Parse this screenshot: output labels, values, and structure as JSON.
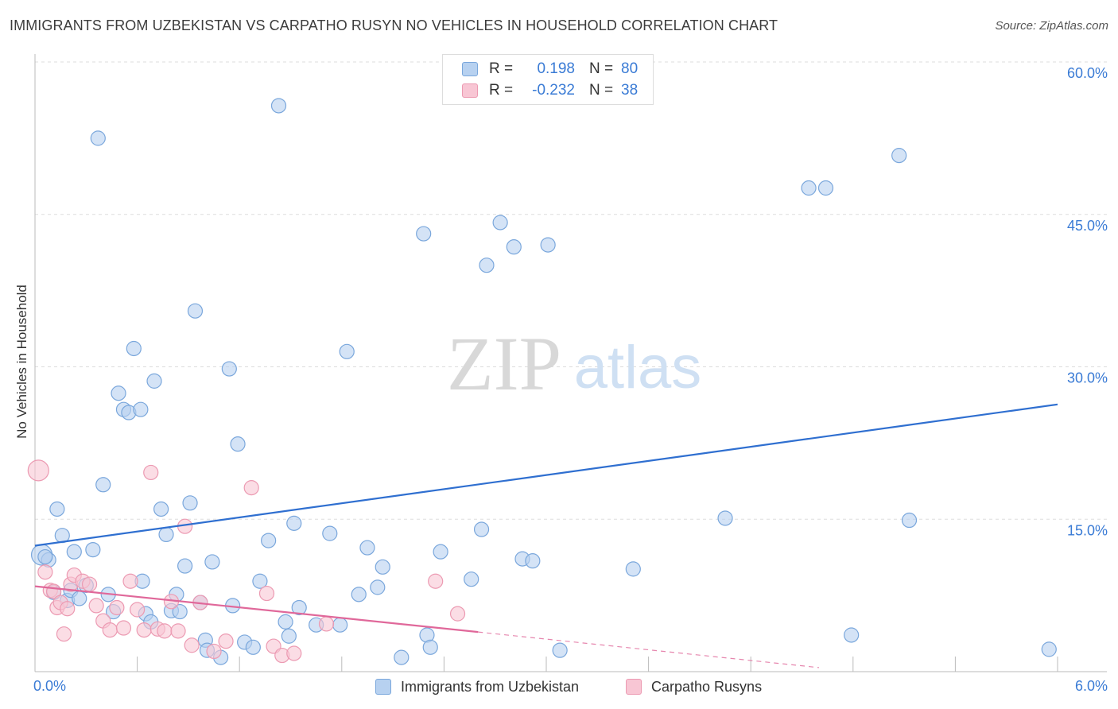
{
  "header": {
    "title": "IMMIGRANTS FROM UZBEKISTAN VS CARPATHO RUSYN NO VEHICLES IN HOUSEHOLD CORRELATION CHART",
    "source": "Source: ZipAtlas.com"
  },
  "legend": {
    "rows": [
      {
        "r_label": "R =",
        "r_value": "0.198",
        "n_label": "N =",
        "n_value": "80"
      },
      {
        "r_label": "R =",
        "r_value": "-0.232",
        "n_label": "N =",
        "n_value": "38"
      }
    ]
  },
  "watermark": {
    "zip": "ZIP",
    "atlas": "atlas"
  },
  "colors": {
    "blue_fill": "#b7d1f0",
    "blue_stroke": "#7aa7dc",
    "blue_line": "#2f6fd0",
    "pink_fill": "#f8c6d4",
    "pink_stroke": "#ec9ab2",
    "pink_line": "#e0689a",
    "tick_text": "#3a7bd5",
    "grid": "#dddddd"
  },
  "chart_data": {
    "type": "scatter",
    "title": "IMMIGRANTS FROM UZBEKISTAN VS CARPATHO RUSYN NO VEHICLES IN HOUSEHOLD CORRELATION CHART",
    "xlabel": "",
    "ylabel": "No Vehicles in Household",
    "xlim": [
      0,
      6
    ],
    "ylim": [
      0,
      60
    ],
    "x_tick_labels": [
      "0.0%",
      "6.0%"
    ],
    "y_ticks": [
      15,
      30,
      45,
      60
    ],
    "y_tick_labels": [
      "15.0%",
      "30.0%",
      "45.0%",
      "60.0%"
    ],
    "grid": true,
    "legend_position": "top-center",
    "series": [
      {
        "name": "Immigrants from Uzbekistan",
        "color": "#b7d1f0",
        "trend": {
          "x": [
            0.0,
            6.0
          ],
          "y": [
            12.4,
            26.3
          ],
          "style": "solid"
        },
        "points": [
          [
            0.04,
            11.5
          ],
          [
            0.08,
            11.0
          ],
          [
            0.11,
            7.8
          ],
          [
            0.13,
            16.0
          ],
          [
            0.16,
            13.4
          ],
          [
            0.19,
            7.0
          ],
          [
            0.21,
            8.0
          ],
          [
            0.23,
            11.8
          ],
          [
            0.26,
            7.2
          ],
          [
            0.3,
            8.5
          ],
          [
            0.34,
            12.0
          ],
          [
            0.37,
            52.5
          ],
          [
            0.4,
            18.4
          ],
          [
            0.43,
            7.6
          ],
          [
            0.46,
            5.9
          ],
          [
            0.49,
            27.4
          ],
          [
            0.52,
            25.8
          ],
          [
            0.55,
            25.5
          ],
          [
            0.58,
            31.8
          ],
          [
            0.62,
            25.8
          ],
          [
            0.63,
            8.9
          ],
          [
            0.65,
            5.7
          ],
          [
            0.68,
            4.9
          ],
          [
            0.7,
            28.6
          ],
          [
            0.74,
            16.0
          ],
          [
            0.77,
            13.5
          ],
          [
            0.8,
            6.0
          ],
          [
            0.83,
            7.6
          ],
          [
            0.85,
            5.9
          ],
          [
            0.88,
            10.4
          ],
          [
            0.91,
            16.6
          ],
          [
            0.94,
            35.5
          ],
          [
            0.97,
            6.8
          ],
          [
            1.0,
            3.1
          ],
          [
            1.01,
            2.1
          ],
          [
            1.04,
            10.8
          ],
          [
            1.09,
            1.4
          ],
          [
            1.14,
            29.8
          ],
          [
            1.16,
            6.5
          ],
          [
            1.19,
            22.4
          ],
          [
            1.23,
            2.9
          ],
          [
            1.28,
            2.4
          ],
          [
            1.32,
            8.9
          ],
          [
            1.37,
            12.9
          ],
          [
            1.43,
            55.7
          ],
          [
            1.47,
            4.9
          ],
          [
            1.49,
            3.5
          ],
          [
            1.52,
            14.6
          ],
          [
            1.55,
            6.3
          ],
          [
            1.65,
            4.6
          ],
          [
            1.73,
            13.6
          ],
          [
            1.79,
            4.6
          ],
          [
            1.83,
            31.5
          ],
          [
            1.9,
            7.6
          ],
          [
            1.95,
            12.2
          ],
          [
            2.01,
            8.3
          ],
          [
            2.04,
            10.3
          ],
          [
            2.15,
            1.4
          ],
          [
            2.28,
            43.1
          ],
          [
            2.3,
            3.6
          ],
          [
            2.32,
            2.4
          ],
          [
            2.38,
            11.8
          ],
          [
            2.56,
            9.1
          ],
          [
            2.62,
            14.0
          ],
          [
            2.65,
            40.0
          ],
          [
            2.73,
            44.2
          ],
          [
            2.81,
            41.8
          ],
          [
            2.86,
            11.1
          ],
          [
            2.92,
            10.9
          ],
          [
            3.01,
            42.0
          ],
          [
            3.08,
            2.1
          ],
          [
            3.51,
            10.1
          ],
          [
            4.05,
            15.1
          ],
          [
            4.54,
            47.6
          ],
          [
            4.64,
            47.6
          ],
          [
            4.79,
            3.6
          ],
          [
            5.07,
            50.8
          ],
          [
            5.13,
            14.9
          ],
          [
            5.95,
            2.2
          ],
          [
            0.06,
            11.3
          ]
        ]
      },
      {
        "name": "Carpatho Rusyns",
        "color": "#f8c6d4",
        "trend": {
          "x": [
            0.0,
            2.6
          ],
          "y": [
            8.4,
            3.9
          ],
          "style": "solid"
        },
        "trend_extension": {
          "x": [
            2.6,
            4.6
          ],
          "y": [
            3.9,
            0.4
          ],
          "style": "dashed"
        },
        "points": [
          [
            0.02,
            19.8
          ],
          [
            0.06,
            9.8
          ],
          [
            0.09,
            8.0
          ],
          [
            0.11,
            7.9
          ],
          [
            0.13,
            6.3
          ],
          [
            0.15,
            6.8
          ],
          [
            0.17,
            3.7
          ],
          [
            0.19,
            6.2
          ],
          [
            0.21,
            8.6
          ],
          [
            0.23,
            9.5
          ],
          [
            0.28,
            8.9
          ],
          [
            0.32,
            8.6
          ],
          [
            0.36,
            6.5
          ],
          [
            0.4,
            5.0
          ],
          [
            0.44,
            4.1
          ],
          [
            0.48,
            6.3
          ],
          [
            0.52,
            4.3
          ],
          [
            0.56,
            8.9
          ],
          [
            0.6,
            6.1
          ],
          [
            0.64,
            4.1
          ],
          [
            0.68,
            19.6
          ],
          [
            0.72,
            4.2
          ],
          [
            0.76,
            4.0
          ],
          [
            0.8,
            6.9
          ],
          [
            0.84,
            4.0
          ],
          [
            0.88,
            14.3
          ],
          [
            0.92,
            2.6
          ],
          [
            0.97,
            6.8
          ],
          [
            1.05,
            2.0
          ],
          [
            1.12,
            3.0
          ],
          [
            1.27,
            18.1
          ],
          [
            1.36,
            7.7
          ],
          [
            1.4,
            2.5
          ],
          [
            1.45,
            1.6
          ],
          [
            1.52,
            1.8
          ],
          [
            1.71,
            4.7
          ],
          [
            2.35,
            8.9
          ],
          [
            2.48,
            5.7
          ]
        ]
      }
    ]
  },
  "bottom_legend": {
    "items": [
      {
        "label": "Immigrants from Uzbekistan"
      },
      {
        "label": "Carpatho Rusyns"
      }
    ]
  }
}
